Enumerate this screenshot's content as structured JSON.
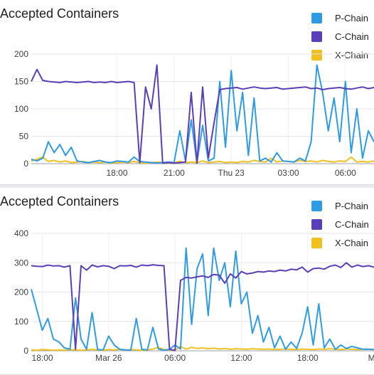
{
  "panels": [
    {
      "title": "Accepted Containers",
      "legend": [
        {
          "name": "P-Chain",
          "color": "#2f9be4"
        },
        {
          "name": "C-Chain",
          "color": "#5b3fb8"
        },
        {
          "name": "X-Chain",
          "color": "#f0c020"
        }
      ]
    },
    {
      "title": "Accepted Containers",
      "legend": [
        {
          "name": "P-Chain",
          "color": "#2f9be4"
        },
        {
          "name": "C-Chain",
          "color": "#5b3fb8"
        },
        {
          "name": "X-Chain",
          "color": "#f0c020"
        }
      ]
    }
  ],
  "chart_data": [
    {
      "type": "line",
      "title": "Accepted Containers",
      "ylim": [
        0,
        200
      ],
      "y_ticks": [
        "0",
        "50",
        "100",
        "150",
        "200"
      ],
      "x_ticks": [
        {
          "label": "18:00",
          "t": 6
        },
        {
          "label": "21:00",
          "t": 9
        },
        {
          "label": "Thu 23",
          "t": 12
        },
        {
          "label": "03:00",
          "t": 15
        },
        {
          "label": "06:00",
          "t": 18
        }
      ],
      "x_range": [
        1.5,
        19.5
      ],
      "grid": true,
      "legend": "top-right",
      "x": [
        1.5,
        1.8,
        2.1,
        2.4,
        2.7,
        3.0,
        3.3,
        3.6,
        3.9,
        4.2,
        4.5,
        4.8,
        5.1,
        5.4,
        5.7,
        6.0,
        6.3,
        6.6,
        6.9,
        7.2,
        7.5,
        7.8,
        8.1,
        8.4,
        8.7,
        9.0,
        9.3,
        9.6,
        9.9,
        10.2,
        10.5,
        10.8,
        11.1,
        11.4,
        11.7,
        12.0,
        12.3,
        12.6,
        12.9,
        13.2,
        13.5,
        13.8,
        14.1,
        14.4,
        14.7,
        15.0,
        15.3,
        15.6,
        15.9,
        16.2,
        16.5,
        16.8,
        17.1,
        17.4,
        17.7,
        18.0,
        18.3,
        18.6,
        18.9,
        19.2,
        19.5
      ],
      "series": [
        {
          "name": "P-Chain",
          "color": "#2f9be4",
          "values": [
            8,
            5,
            10,
            40,
            20,
            35,
            15,
            30,
            5,
            3,
            2,
            4,
            6,
            3,
            2,
            5,
            4,
            3,
            12,
            4,
            3,
            2,
            1,
            2,
            3,
            2,
            60,
            5,
            80,
            2,
            70,
            5,
            10,
            150,
            30,
            170,
            60,
            130,
            15,
            120,
            5,
            10,
            3,
            20,
            5,
            4,
            3,
            10,
            5,
            40,
            180,
            130,
            60,
            120,
            40,
            150,
            20,
            100,
            10,
            60,
            40
          ]
        },
        {
          "name": "C-Chain",
          "color": "#5b3fb8",
          "values": [
            150,
            172,
            152,
            150,
            149,
            148,
            150,
            149,
            148,
            149,
            150,
            148,
            149,
            148,
            150,
            148,
            149,
            150,
            148,
            2,
            140,
            100,
            180,
            1,
            2,
            1,
            2,
            3,
            130,
            1,
            140,
            10,
            75,
            135,
            137,
            138,
            139,
            136,
            138,
            140,
            138,
            137,
            138,
            139,
            136,
            137,
            138,
            139,
            140,
            137,
            138,
            135,
            137,
            138,
            139,
            137,
            136,
            138,
            140,
            137,
            139
          ]
        },
        {
          "name": "X-Chain",
          "color": "#f0c020",
          "values": [
            5,
            8,
            12,
            4,
            6,
            3,
            5,
            2,
            3,
            4,
            2,
            3,
            2,
            3,
            1,
            2,
            3,
            2,
            4,
            2,
            1,
            2,
            3,
            2,
            1,
            2,
            4,
            2,
            3,
            2,
            5,
            2,
            3,
            4,
            2,
            3,
            2,
            4,
            3,
            6,
            4,
            3,
            10,
            3,
            5,
            4,
            3,
            6,
            4,
            5,
            3,
            6,
            4,
            3,
            5,
            4,
            12,
            3,
            4,
            3,
            5
          ]
        }
      ]
    },
    {
      "type": "line",
      "title": "Accepted Containers",
      "ylim": [
        0,
        400
      ],
      "y_ticks": [
        "0",
        "100",
        "200",
        "300",
        "400"
      ],
      "x_ticks": [
        {
          "label": "18:00",
          "t": 0
        },
        {
          "label": "Mar 26",
          "t": 6
        },
        {
          "label": "06:00",
          "t": 12
        },
        {
          "label": "12:00",
          "t": 18
        },
        {
          "label": "18:00",
          "t": 24
        },
        {
          "label": "Mo",
          "t": 30
        }
      ],
      "x_range": [
        -1,
        30
      ],
      "grid": true,
      "legend": "top-right",
      "x": [
        -1.0,
        -0.5,
        0.0,
        0.5,
        1.0,
        1.5,
        2.0,
        2.5,
        3.0,
        3.5,
        4.0,
        4.5,
        5.0,
        5.5,
        6.0,
        6.5,
        7.0,
        7.5,
        8.0,
        8.5,
        9.0,
        9.5,
        10.0,
        10.5,
        11.0,
        11.5,
        12.0,
        12.5,
        13.0,
        13.5,
        14.0,
        14.5,
        15.0,
        15.5,
        16.0,
        16.5,
        17.0,
        17.5,
        18.0,
        18.5,
        19.0,
        19.5,
        20.0,
        20.5,
        21.0,
        21.5,
        22.0,
        22.5,
        23.0,
        23.5,
        24.0,
        24.5,
        25.0,
        25.5,
        26.0,
        26.5,
        27.0,
        27.5,
        28.0,
        28.5,
        29.0,
        29.5,
        30.0
      ],
      "series": [
        {
          "name": "P-Chain",
          "color": "#2f9be4",
          "values": [
            210,
            140,
            70,
            110,
            40,
            30,
            10,
            5,
            180,
            40,
            5,
            130,
            4,
            3,
            50,
            20,
            5,
            3,
            2,
            110,
            5,
            3,
            80,
            6,
            2,
            5,
            20,
            6,
            350,
            90,
            280,
            330,
            120,
            350,
            240,
            300,
            150,
            340,
            160,
            200,
            60,
            120,
            30,
            80,
            10,
            50,
            5,
            30,
            8,
            60,
            150,
            20,
            160,
            10,
            40,
            5,
            20,
            8,
            15,
            10,
            5,
            5,
            4
          ]
        },
        {
          "name": "C-Chain",
          "color": "#5b3fb8",
          "values": [
            290,
            288,
            287,
            292,
            289,
            290,
            285,
            290,
            5,
            290,
            275,
            292,
            286,
            290,
            288,
            280,
            290,
            289,
            291,
            285,
            292,
            290,
            293,
            291,
            290,
            5,
            1,
            240,
            250,
            248,
            252,
            255,
            250,
            260,
            258,
            230,
            262,
            248,
            270,
            262,
            265,
            270,
            268,
            272,
            270,
            275,
            272,
            278,
            276,
            285,
            268,
            280,
            282,
            278,
            288,
            292,
            284,
            300,
            285,
            292,
            287,
            290,
            285
          ]
        },
        {
          "name": "X-Chain",
          "color": "#f0c020",
          "values": [
            3,
            2,
            4,
            3,
            2,
            3,
            2,
            4,
            3,
            2,
            3,
            5,
            3,
            2,
            4,
            3,
            5,
            3,
            4,
            3,
            2,
            3,
            6,
            12,
            4,
            3,
            3,
            14,
            6,
            12,
            8,
            10,
            7,
            9,
            6,
            8,
            5,
            7,
            6,
            5,
            7,
            6,
            5,
            6,
            4,
            5,
            6,
            5,
            4,
            6,
            5,
            4,
            6,
            5,
            7,
            5,
            4,
            6,
            5,
            4,
            5,
            6,
            4
          ]
        }
      ]
    }
  ]
}
